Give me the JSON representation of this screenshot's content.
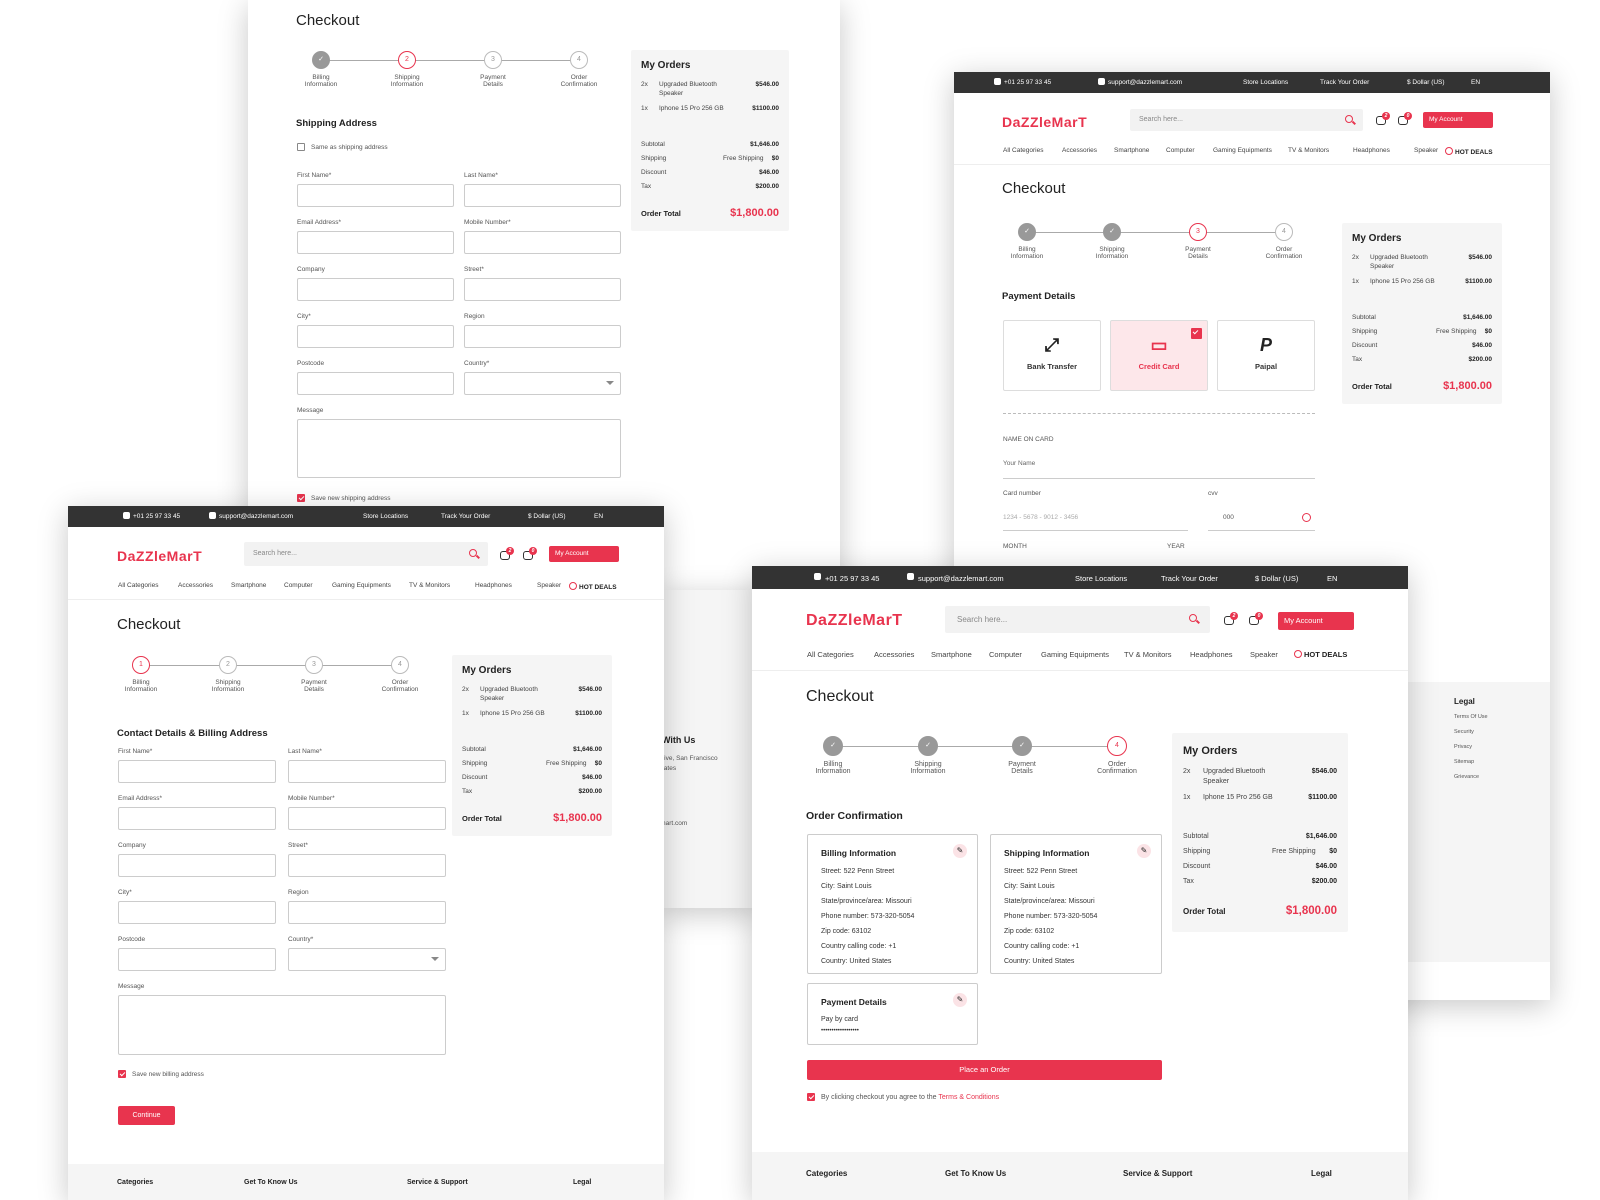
{
  "common": {
    "phone": "+01 25 97 33 45",
    "email": "support@dazzlemart.com",
    "store_locations": "Store Locations",
    "track_order": "Track Your Order",
    "currency": "$ Dollar (US)",
    "language": "EN",
    "logo": "DaZZleMarT",
    "search_placeholder": "Search here...",
    "wishlist_count": "2",
    "cart_count": "0",
    "my_account": "My Account",
    "nav": [
      "All Categories",
      "Accessories",
      "Smartphone",
      "Computer",
      "Gaming Equipments",
      "TV & Monitors",
      "Headphones",
      "Speaker"
    ],
    "hot_deals": "HOT DEALS",
    "checkout_title": "Checkout",
    "steps": [
      {
        "num": "1",
        "l1": "Billing",
        "l2": "Information"
      },
      {
        "num": "2",
        "l1": "Shipping",
        "l2": "Information"
      },
      {
        "num": "3",
        "l1": "Payment",
        "l2": "Details"
      },
      {
        "num": "4",
        "l1": "Order",
        "l2": "Confirmation"
      }
    ],
    "orders": {
      "title": "My Orders",
      "items": [
        {
          "qty": "2x",
          "name1": "Upgraded Bluetooth",
          "name2": "Speaker",
          "price": "$546.00"
        },
        {
          "qty": "1x",
          "name1": "Iphone 15 Pro 256 GB",
          "name2": "",
          "price": "$1100.00"
        }
      ],
      "subtotal_label": "Subtotal",
      "subtotal": "$1,646.00",
      "shipping_label": "Shipping",
      "shipping_free": "Free Shipping",
      "shipping": "$0",
      "discount_label": "Discount",
      "discount": "$46.00",
      "tax_label": "Tax",
      "tax": "$200.00",
      "total_label": "Order Total",
      "total": "$1,800.00"
    },
    "footer": {
      "categories": "Categories",
      "get_to_know": "Get To Know Us",
      "service": "Service & Support",
      "legal": "Legal"
    }
  },
  "form": {
    "first_name": "First Name*",
    "last_name": "Last Name*",
    "email": "Email Address*",
    "mobile": "Mobile Number*",
    "company": "Company",
    "street": "Street*",
    "city": "City*",
    "region": "Region",
    "postcode": "Postcode",
    "country": "Country*",
    "message": "Message"
  },
  "shipping_screen": {
    "section": "Shipping Address",
    "same_as": "Same as shipping address",
    "save": "Save new shipping address"
  },
  "billing_screen": {
    "section": "Contact Details & Billing Address",
    "save": "Save new billing address",
    "continue": "Continue"
  },
  "payment_screen": {
    "section": "Payment Details",
    "methods": [
      "Bank Transfer",
      "Credit Card",
      "Paipal"
    ],
    "name_on_card": "NAME ON CARD",
    "your_name": "Your Name",
    "card_number": "Card number",
    "card_placeholder": "1234 - 5678 - 9012 - 3456",
    "cvv": "cvv",
    "cvv_value": "000",
    "month": "MONTH",
    "year": "YEAR",
    "legal_links": [
      "Terms Of Use",
      "Security",
      "Privacy",
      "Sitemap",
      "Grievance"
    ]
  },
  "confirm_screen": {
    "section": "Order Confirmation",
    "billing_title": "Billing Information",
    "shipping_title": "Shipping Information",
    "address_lines": [
      "Street:  522 Penn Street",
      "City:  Saint Louis",
      "State/province/area:  Missouri",
      "Phone number:  573-320-5054",
      "Zip code:  63102",
      "Country calling code:  +1",
      "Country:  United States"
    ],
    "payment_title": "Payment Details",
    "pay_by": "Pay by card",
    "pay_masked": "••••••••••••••••••",
    "place_order": "Place an Order",
    "agree_text": "By clicking checkout you agree to the",
    "terms": "Terms & Conditions"
  },
  "bg_fragment": {
    "with_us": "With Us",
    "addr1": "rive, San Francisco",
    "addr2": "tates",
    "mail": "nart.com"
  }
}
